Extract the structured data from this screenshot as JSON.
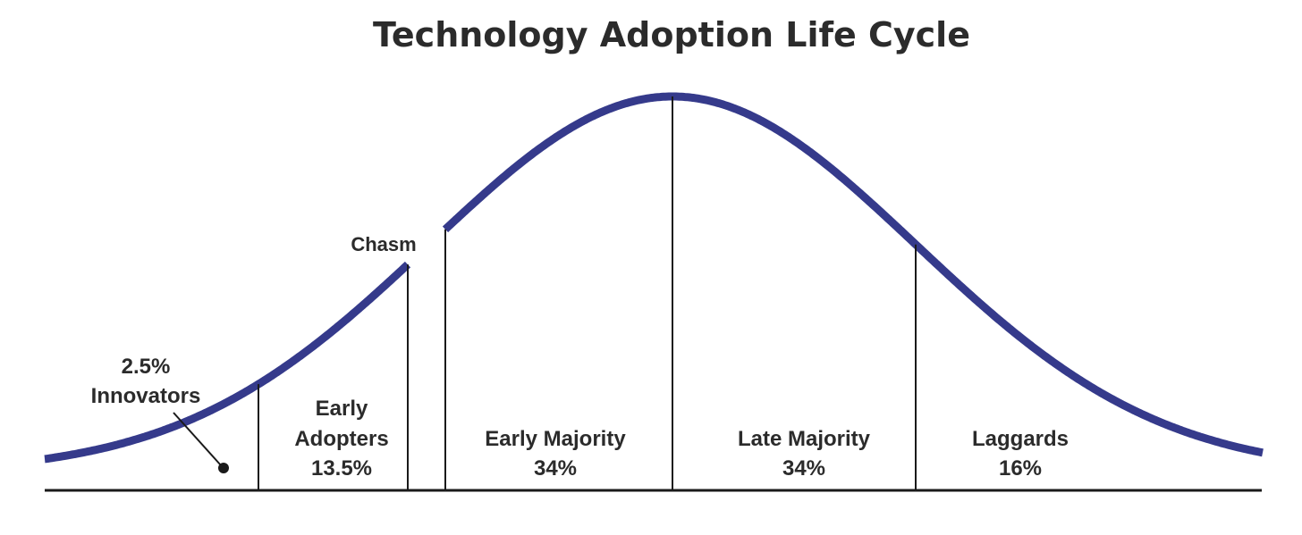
{
  "title": "Technology Adoption Life Cycle",
  "curve_color": "#353a8b",
  "chasm_label": "Chasm",
  "segments": [
    {
      "name": "Innovators",
      "percent": "2.5%"
    },
    {
      "name": "Early Adopters",
      "name_line1": "Early",
      "name_line2": "Adopters",
      "percent": "13.5%"
    },
    {
      "name": "Early Majority",
      "percent": "34%"
    },
    {
      "name": "Late Majority",
      "percent": "34%"
    },
    {
      "name": "Laggards",
      "percent": "16%"
    }
  ]
}
